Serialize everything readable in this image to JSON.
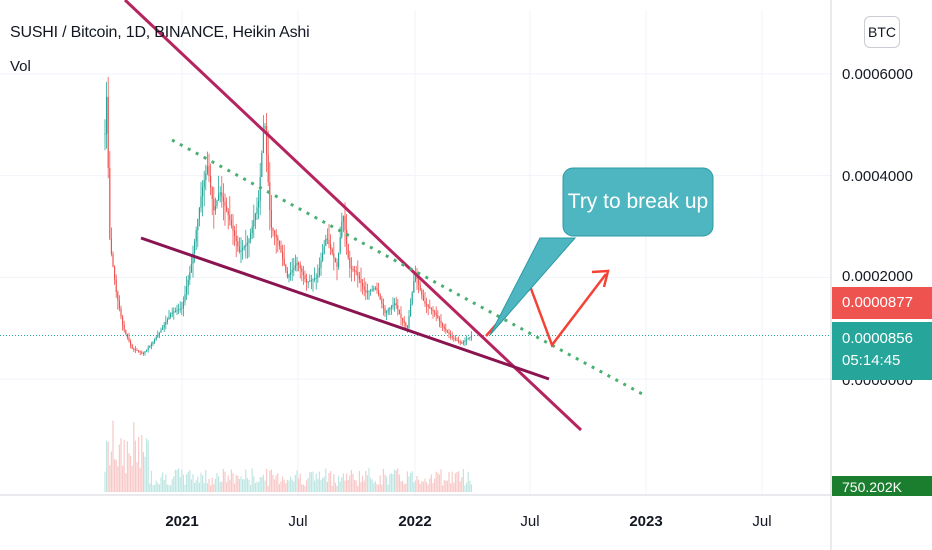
{
  "header": {
    "title": "SUSHI / Bitcoin, 1D, BINANCE, Heikin Ashi",
    "volume_label": "Vol",
    "currency_button": "BTC"
  },
  "callout": {
    "text": "Try to break up"
  },
  "price_badges": {
    "high": "0.0000877",
    "last": "0.0000856",
    "countdown": "05:14:45",
    "volume": "750.202K"
  },
  "colors": {
    "up": "#26a69a",
    "down": "#ef5350",
    "trendline": "#b5245f",
    "support_line": "#8a1450",
    "dotted_channel": "#4caf72",
    "callout_fill": "#4db6c0",
    "arrow": "#f44336",
    "volume_badge": "#1b7e2f"
  },
  "chart_data": {
    "type": "line",
    "title": "SUSHI / Bitcoin, 1D, BINANCE, Heikin Ashi",
    "x_tick_labels": [
      "2021",
      "Jul",
      "2022",
      "Jul",
      "2023",
      "Jul"
    ],
    "y_tick_labels": [
      "0.0006000",
      "0.0004000",
      "0.0002000",
      "0.0000000"
    ],
    "ylim": [
      -7e-05,
      0.00068
    ],
    "x": [
      "2020-09-01",
      "2020-09-03",
      "2020-09-10",
      "2020-09-20",
      "2020-10-01",
      "2020-10-15",
      "2020-11-01",
      "2020-11-15",
      "2020-12-01",
      "2020-12-15",
      "2021-01-01",
      "2021-01-15",
      "2021-02-01",
      "2021-02-10",
      "2021-02-20",
      "2021-03-01",
      "2021-03-15",
      "2021-04-01",
      "2021-04-15",
      "2021-05-01",
      "2021-05-10",
      "2021-05-20",
      "2021-06-01",
      "2021-06-15",
      "2021-07-01",
      "2021-07-15",
      "2021-08-01",
      "2021-08-15",
      "2021-09-01",
      "2021-09-10",
      "2021-09-20",
      "2021-10-01",
      "2021-10-15",
      "2021-11-01",
      "2021-11-15",
      "2021-12-01",
      "2021-12-10",
      "2021-12-20",
      "2022-01-01",
      "2022-01-15",
      "2022-02-01",
      "2022-02-15",
      "2022-03-01",
      "2022-03-15",
      "2022-03-25",
      "2022-04-01"
    ],
    "series": [
      {
        "values": [
          9e-05,
          0.00066,
          0.00027,
          0.00017,
          0.0001,
          6e-05,
          5e-05,
          7e-05,
          0.0001,
          0.00013,
          0.00014,
          0.00022,
          0.00037,
          0.00042,
          0.00033,
          0.00037,
          0.00032,
          0.00025,
          0.00027,
          0.00035,
          0.00052,
          0.0003,
          0.00027,
          0.0002,
          0.00023,
          0.00019,
          0.0002,
          0.00028,
          0.00022,
          0.00033,
          0.00022,
          0.00021,
          0.00017,
          0.00018,
          0.00013,
          0.00015,
          0.00012,
          0.0001,
          0.00021,
          0.00015,
          0.00013,
          0.0001,
          8e-05,
          7e-05,
          8e-05,
          8.6e-05
        ]
      }
    ],
    "volume_label": "Vol",
    "grid": true,
    "last_price": "0.0000856",
    "high_price": "0.0000877",
    "annotation": "Try to break up"
  }
}
